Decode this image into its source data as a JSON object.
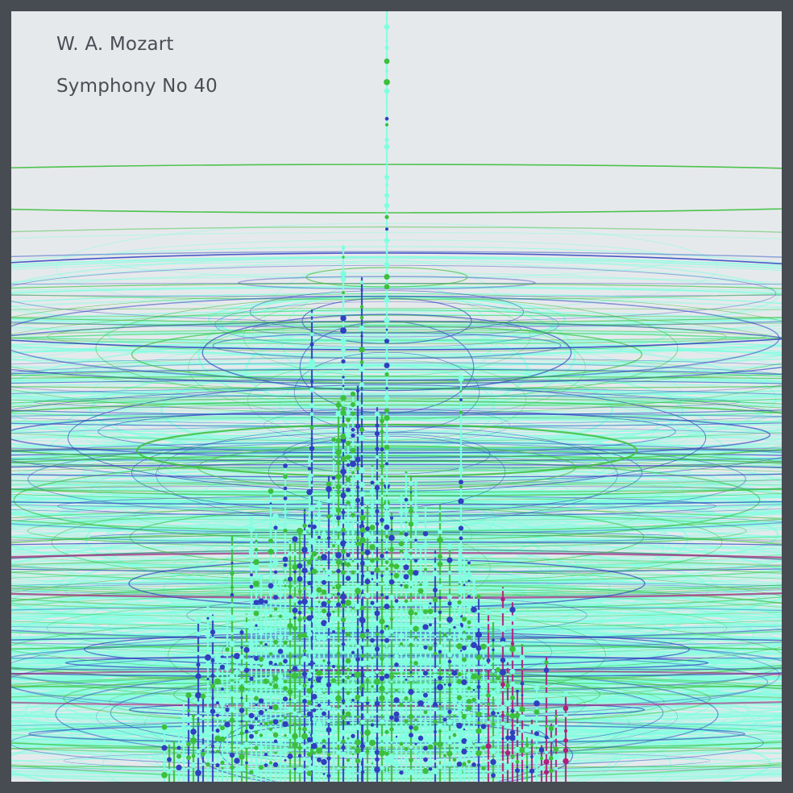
{
  "artwork": {
    "composer": "W. A. Mozart",
    "title": "Symphony No 40"
  },
  "palette": {
    "frame": "#474b52",
    "background": "#e6e9ec",
    "text": "#4a4d54",
    "aqua": "#7fffe0",
    "green": "#3cbf3c",
    "blue": "#2f3fbf",
    "magenta": "#b0207a"
  }
}
